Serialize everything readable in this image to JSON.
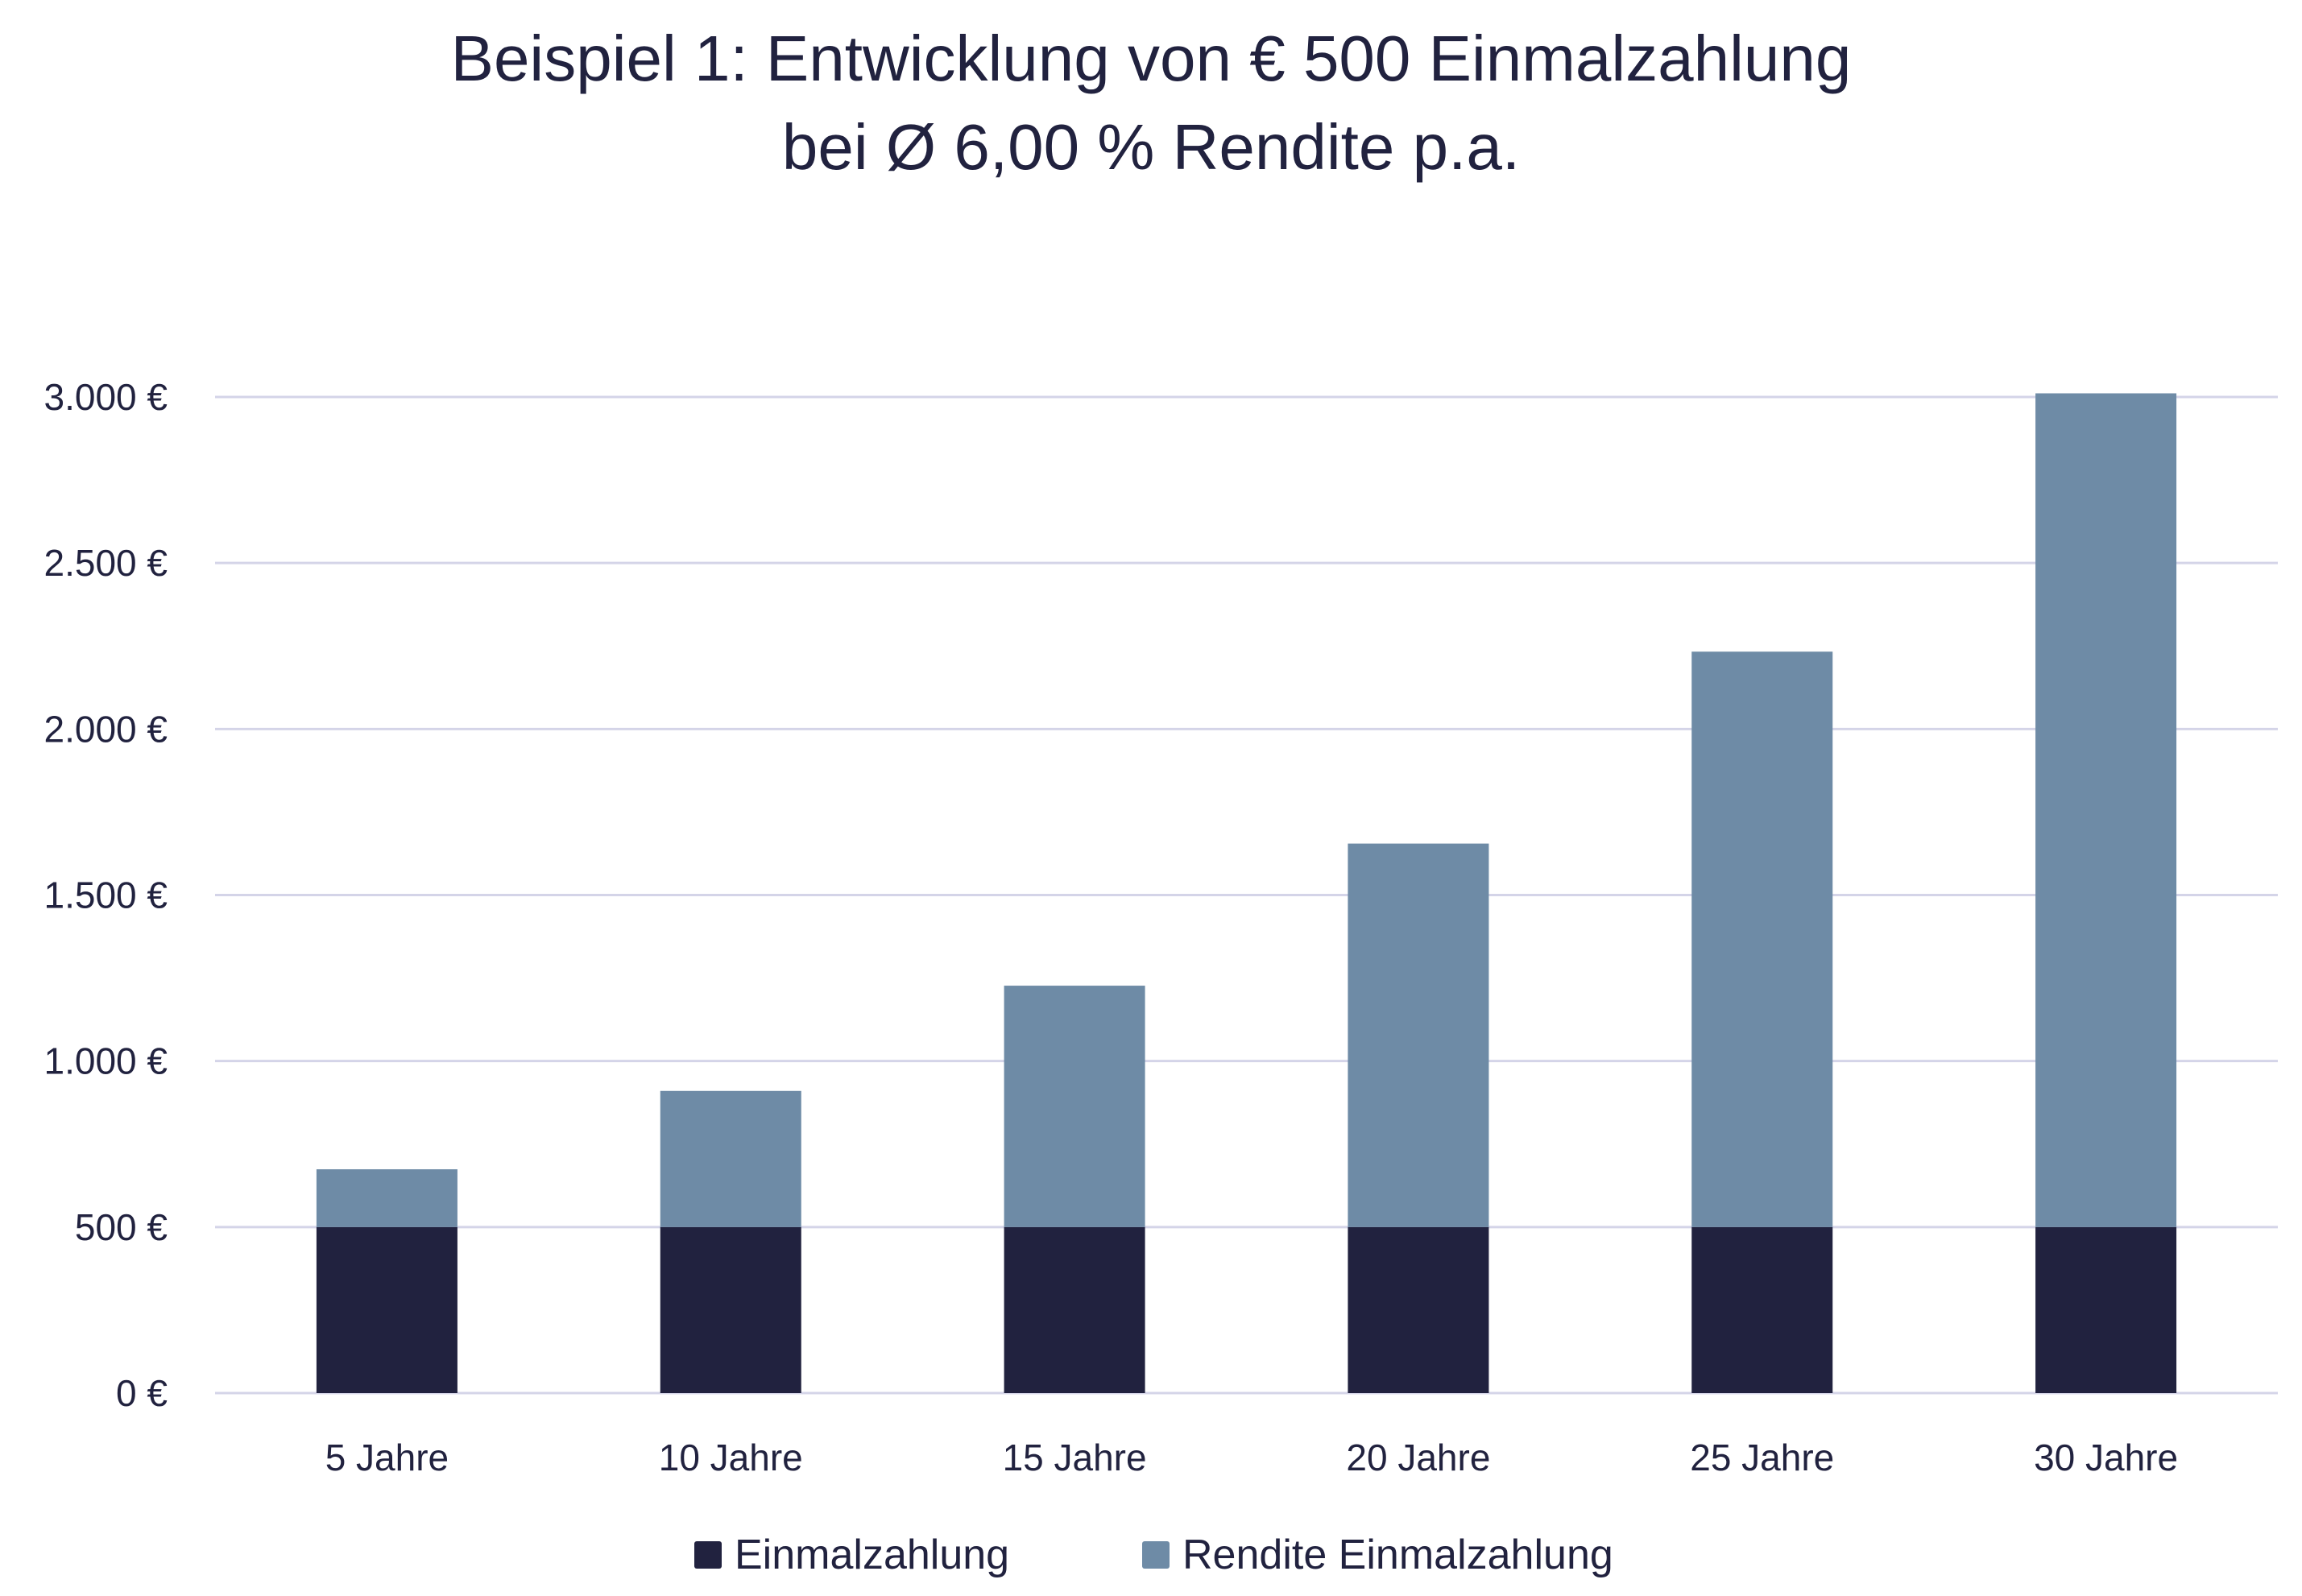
{
  "chart_data": {
    "type": "bar",
    "stacked": true,
    "title": [
      "Beispiel 1: Entwicklung von € 500 Einmalzahlung",
      "bei Ø 6,00 % Rendite p.a."
    ],
    "xlabel": "",
    "ylabel": "",
    "categories": [
      "5 Jahre",
      "10 Jahre",
      "15 Jahre",
      "20 Jahre",
      "25 Jahre",
      "30 Jahre"
    ],
    "series": [
      {
        "name": "Einmalzahlung",
        "color": "#21223f",
        "values": [
          500,
          500,
          500,
          500,
          500,
          500
        ]
      },
      {
        "name": "Rendite Einmalzahlung",
        "color": "#6e8ba6",
        "values": [
          174,
          410,
          727,
          1155,
          1733,
          2511
        ]
      }
    ],
    "ylim": [
      0,
      3000
    ],
    "yticks": [
      0,
      500,
      1000,
      1500,
      2000,
      2500,
      3000
    ],
    "ytick_labels": [
      "0 €",
      "500 €",
      "1.000 €",
      "1.500 €",
      "2.000 €",
      "2.500 €",
      "3.000 €"
    ],
    "grid": true,
    "grid_color": "#d4d4e8",
    "legend_position": "bottom"
  }
}
